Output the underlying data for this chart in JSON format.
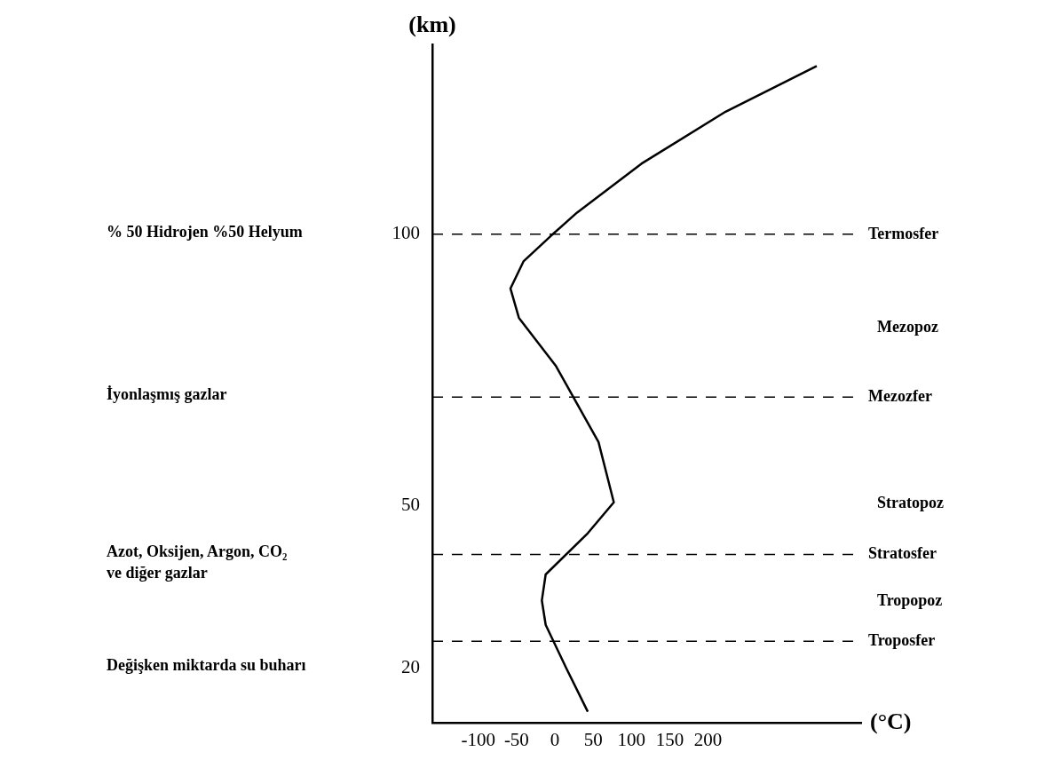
{
  "chart_data": {
    "type": "line",
    "xlabel": "(°C)",
    "ylabel": "(km)",
    "xlim": [
      -160,
      400
    ],
    "xticks": [
      -100,
      -50,
      0,
      50,
      100,
      150,
      200
    ],
    "ylim": [
      10,
      135
    ],
    "yticks": [
      20,
      50,
      100
    ],
    "grid": false,
    "legend": false,
    "marker": "none",
    "series": [
      {
        "color": "#000000",
        "x": [
          43,
          15,
          -12,
          -17,
          -12,
          43,
          77,
          57,
          1,
          -47,
          -58,
          -41,
          -6,
          29,
          113,
          223,
          342
        ],
        "values": [
          12,
          20,
          28,
          32.5,
          37.3,
          44.9,
          50.6,
          61.7,
          75.8,
          84.6,
          90,
          95,
          99.6,
          104,
          113,
          122.6,
          131
        ]
      }
    ],
    "ref_lines": [
      {
        "axis": "y",
        "value": 100,
        "line_style": "dashed",
        "label": "Termosfer"
      },
      {
        "axis": "y",
        "value": 70,
        "line_style": "dashed",
        "label": "Mezozfer"
      },
      {
        "axis": "y",
        "value": 41,
        "line_style": "dashed",
        "label": "Stratosfer"
      },
      {
        "axis": "y",
        "value": 25,
        "line_style": "dashed",
        "label": "Troposfer"
      }
    ],
    "annotations": [
      "Mezopoz",
      "Stratopoz",
      "Tropopoz",
      "% 50 Hidrojen %50 Helyum",
      "İyonlaşmış gazlar",
      "Azot, Oksijen, Argon, CO₂",
      "ve diğer gazlar",
      "Değişken miktarda su buharı"
    ]
  }
}
